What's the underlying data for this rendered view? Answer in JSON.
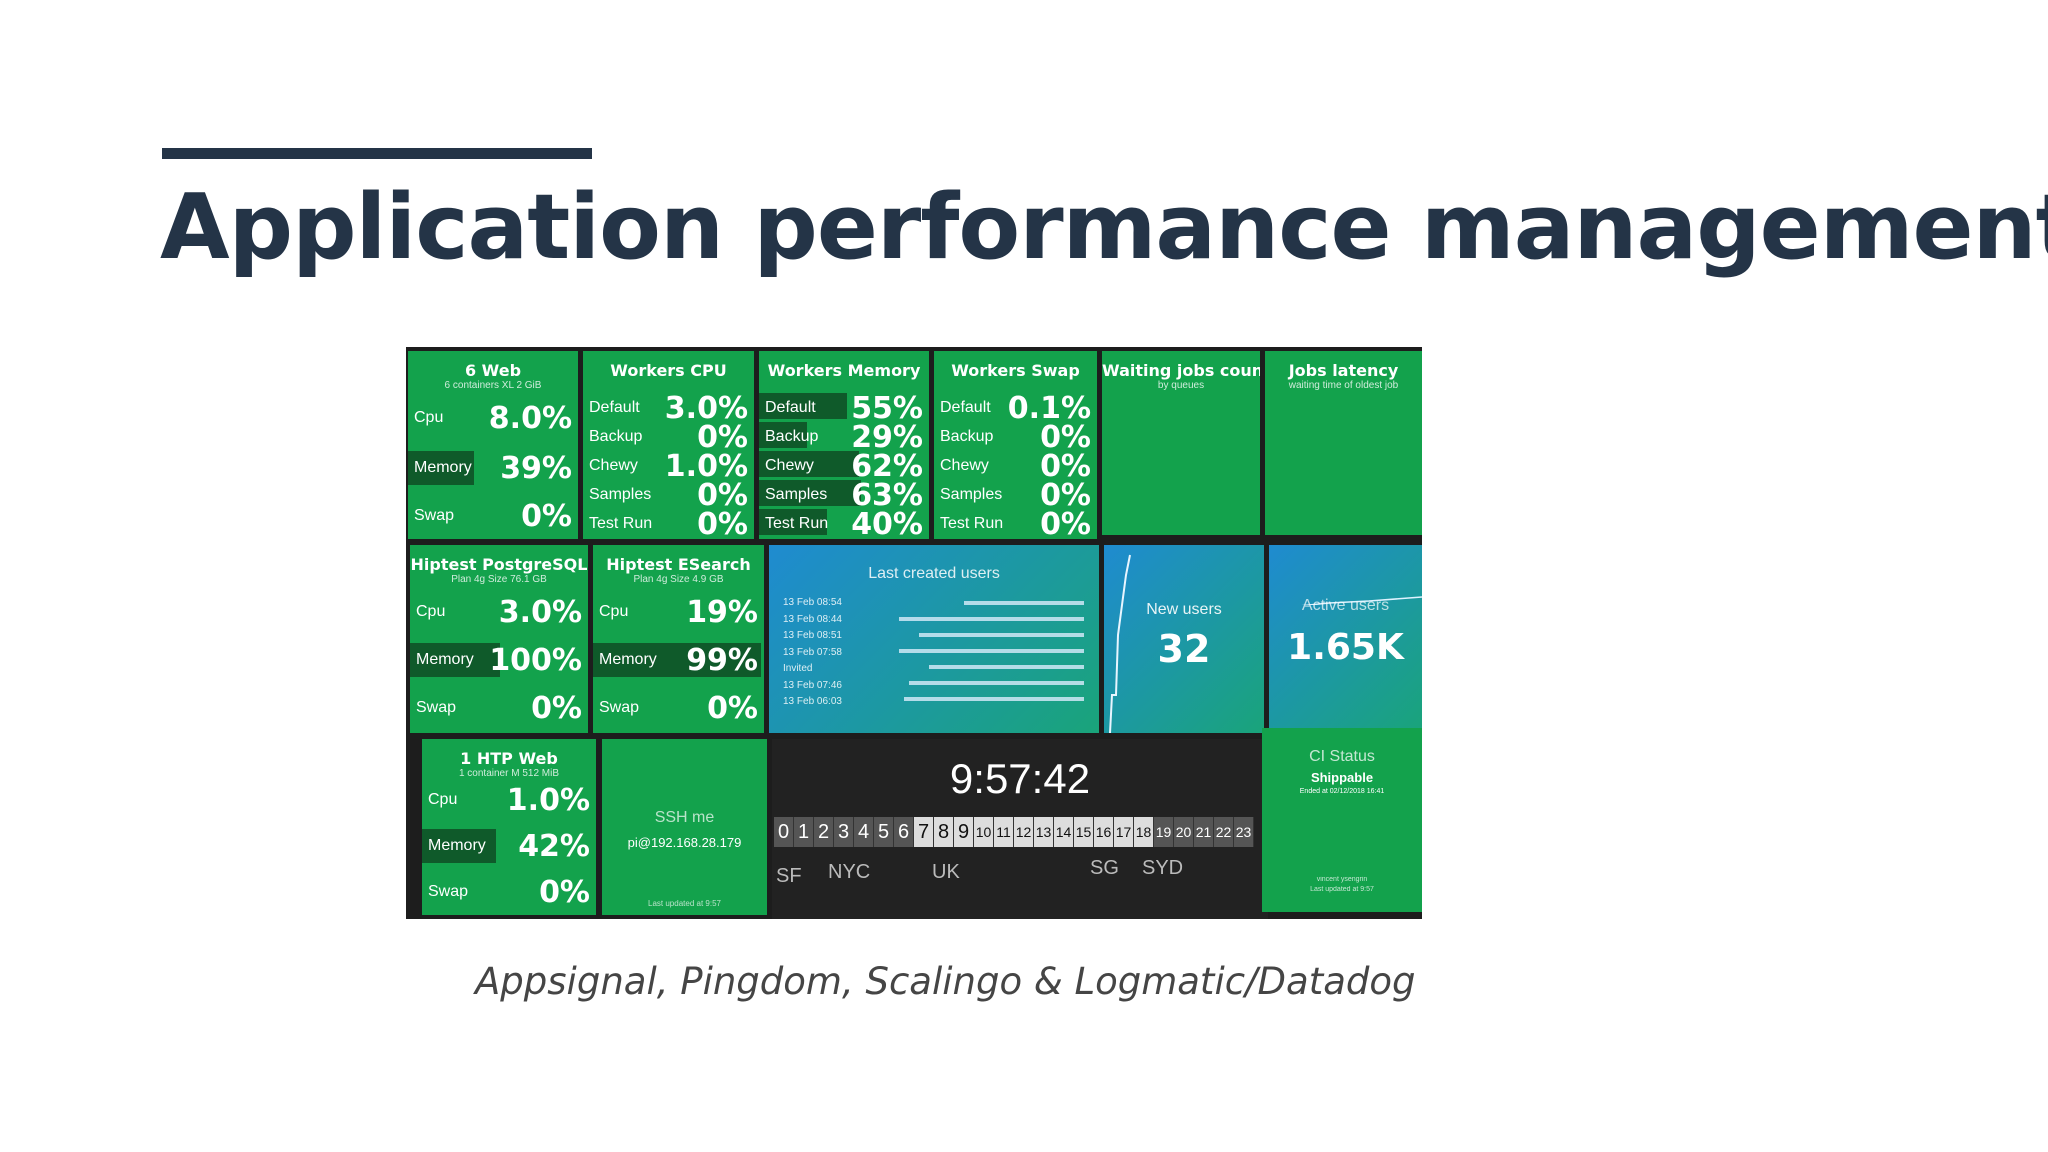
{
  "slide": {
    "title": "Application performance management",
    "caption": "Appsignal, Pingdom, Scalingo & Logmatic/Datadog"
  },
  "dashboard": {
    "web": {
      "name": "6 Web",
      "sub": "6 containers XL 2 GiB",
      "rows": [
        {
          "label": "Cpu",
          "value": "8.0%"
        },
        {
          "label": "Memory",
          "value": "39%",
          "fill": 0.39
        },
        {
          "label": "Swap",
          "value": "0%"
        }
      ]
    },
    "cpu": {
      "name": "Workers CPU",
      "rows": [
        {
          "label": "Default",
          "value": "3.0%"
        },
        {
          "label": "Backup",
          "value": "0%"
        },
        {
          "label": "Chewy",
          "value": "1.0%"
        },
        {
          "label": "Samples",
          "value": "0%"
        },
        {
          "label": "Test Run",
          "value": "0%"
        }
      ]
    },
    "memory": {
      "name": "Workers Memory",
      "rows": [
        {
          "label": "Default",
          "value": "55%",
          "fill": 0.55
        },
        {
          "label": "Backup",
          "value": "29%",
          "fill": 0.29
        },
        {
          "label": "Chewy",
          "value": "62%",
          "fill": 0.62
        },
        {
          "label": "Samples",
          "value": "63%",
          "fill": 0.63
        },
        {
          "label": "Test Run",
          "value": "40%",
          "fill": 0.4
        }
      ]
    },
    "swap": {
      "name": "Workers Swap",
      "rows": [
        {
          "label": "Default",
          "value": "0.1%"
        },
        {
          "label": "Backup",
          "value": "0%"
        },
        {
          "label": "Chewy",
          "value": "0%"
        },
        {
          "label": "Samples",
          "value": "0%"
        },
        {
          "label": "Test Run",
          "value": "0%"
        }
      ]
    },
    "waiting": {
      "name": "Waiting jobs count",
      "sub": "by queues"
    },
    "latency": {
      "name": "Jobs latency",
      "sub": "waiting time of oldest job"
    },
    "postgres": {
      "name": "Hiptest PostgreSQL",
      "sub": "Plan 4g Size 76.1 GB",
      "rows": [
        {
          "label": "Cpu",
          "value": "3.0%"
        },
        {
          "label": "Memory",
          "value": "100%",
          "fill": 1.0
        },
        {
          "label": "Swap",
          "value": "0%"
        }
      ]
    },
    "esearch": {
      "name": "Hiptest ESearch",
      "sub": "Plan 4g Size 4.9 GB",
      "rows": [
        {
          "label": "Cpu",
          "value": "19%"
        },
        {
          "label": "Memory",
          "value": "99%",
          "fill": 0.99
        },
        {
          "label": "Swap",
          "value": "0%"
        }
      ]
    },
    "users": {
      "name": "Last created users",
      "items": [
        "13 Feb 08:54",
        "13 Feb 08:44",
        "13 Feb 08:51",
        "13 Feb 07:58",
        "Invited",
        "13 Feb 07:46",
        "13 Feb 06:03"
      ]
    },
    "new_users": {
      "name": "New users",
      "value": "32"
    },
    "active_users": {
      "name": "Active users",
      "value": "1.65K"
    },
    "htp": {
      "name": "1 HTP Web",
      "sub": "1 container M 512 MiB",
      "rows": [
        {
          "label": "Cpu",
          "value": "1.0%"
        },
        {
          "label": "Memory",
          "value": "42%",
          "fill": 0.42
        },
        {
          "label": "Swap",
          "value": "0%"
        }
      ]
    },
    "ssh": {
      "name": "SSH me",
      "value": "pi@192.168.28.179",
      "footer": "Last updated at 9:57"
    },
    "clock": {
      "time": "9:57:42",
      "hours": [
        "0",
        "1",
        "2",
        "3",
        "4",
        "5",
        "6",
        "7",
        "8",
        "9",
        "10",
        "11",
        "12",
        "13",
        "14",
        "15",
        "16",
        "17",
        "18",
        "19",
        "20",
        "21",
        "22",
        "23"
      ],
      "cities": [
        "SF",
        "NYC",
        "UK",
        "SG",
        "SYD"
      ]
    },
    "ci": {
      "name": "CI Status",
      "value": "Shippable",
      "sub": "Ended at 02/12/2018 16:41",
      "footer1": "vincent ysengrin",
      "footer2": "Last updated at 9:57"
    }
  }
}
